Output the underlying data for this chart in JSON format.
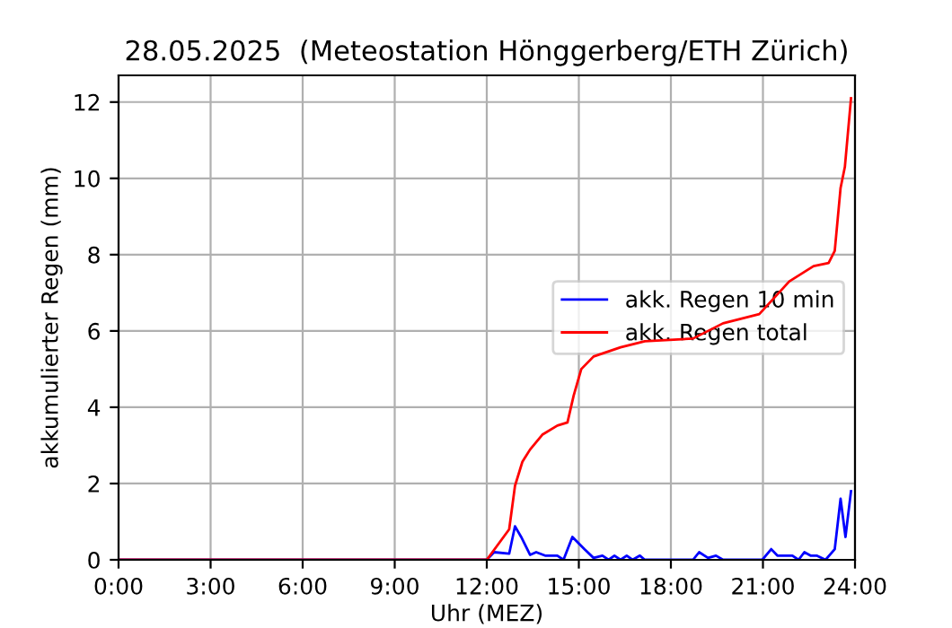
{
  "chart_data": {
    "type": "line",
    "title": "28.05.2025  (Meteostation Hönggerberg/ETH Zürich)",
    "xlabel": "Uhr (MEZ)",
    "ylabel": "akkumulierter Regen (mm)",
    "xlim": [
      0,
      24
    ],
    "ylim": [
      0,
      12.7
    ],
    "xticks": [
      {
        "value": 0,
        "label": "0:00"
      },
      {
        "value": 3,
        "label": "3:00"
      },
      {
        "value": 6,
        "label": "6:00"
      },
      {
        "value": 9,
        "label": "9:00"
      },
      {
        "value": 12,
        "label": "12:00"
      },
      {
        "value": 15,
        "label": "15:00"
      },
      {
        "value": 18,
        "label": "18:00"
      },
      {
        "value": 21,
        "label": "21:00"
      },
      {
        "value": 24,
        "label": "24:00"
      }
    ],
    "yticks": [
      0,
      2,
      4,
      6,
      8,
      10,
      12
    ],
    "grid": true,
    "legend": "right",
    "series": [
      {
        "name": "akk. Regen 10 min",
        "color": "#0000ff",
        "x": [
          0,
          12.0,
          12.24,
          12.73,
          12.92,
          13.12,
          13.41,
          13.61,
          13.9,
          14.3,
          14.5,
          14.79,
          15.18,
          15.48,
          15.77,
          15.97,
          16.16,
          16.36,
          16.56,
          16.75,
          16.99,
          17.15,
          18.72,
          18.92,
          19.21,
          19.47,
          19.7,
          20.98,
          21.27,
          21.47,
          21.96,
          22.16,
          22.35,
          22.55,
          22.75,
          23.04,
          23.34,
          23.53,
          23.69,
          23.87
        ],
        "values": [
          0,
          0,
          0.2,
          0.16,
          0.88,
          0.6,
          0.13,
          0.2,
          0.11,
          0.11,
          0,
          0.6,
          0.28,
          0.05,
          0.11,
          0,
          0.11,
          0,
          0.11,
          0,
          0.11,
          0,
          0,
          0.2,
          0.05,
          0.11,
          0,
          0,
          0.28,
          0.11,
          0.11,
          0,
          0.2,
          0.11,
          0.11,
          0,
          0.28,
          1.6,
          0.6,
          1.8
        ]
      },
      {
        "name": "akk. Regen total",
        "color": "#ff0000",
        "x": [
          0,
          12.0,
          12.73,
          12.92,
          13.16,
          13.41,
          13.81,
          14.3,
          14.63,
          14.83,
          15.08,
          15.48,
          16.36,
          17.15,
          18.72,
          19.7,
          20.88,
          21.86,
          22.65,
          23.14,
          23.34,
          23.53,
          23.67,
          23.87
        ],
        "values": [
          0,
          0,
          0.8,
          1.94,
          2.57,
          2.89,
          3.28,
          3.52,
          3.6,
          4.3,
          5.0,
          5.33,
          5.57,
          5.73,
          5.8,
          6.2,
          6.44,
          7.3,
          7.7,
          7.78,
          8.1,
          9.75,
          10.3,
          12.1
        ]
      }
    ]
  }
}
